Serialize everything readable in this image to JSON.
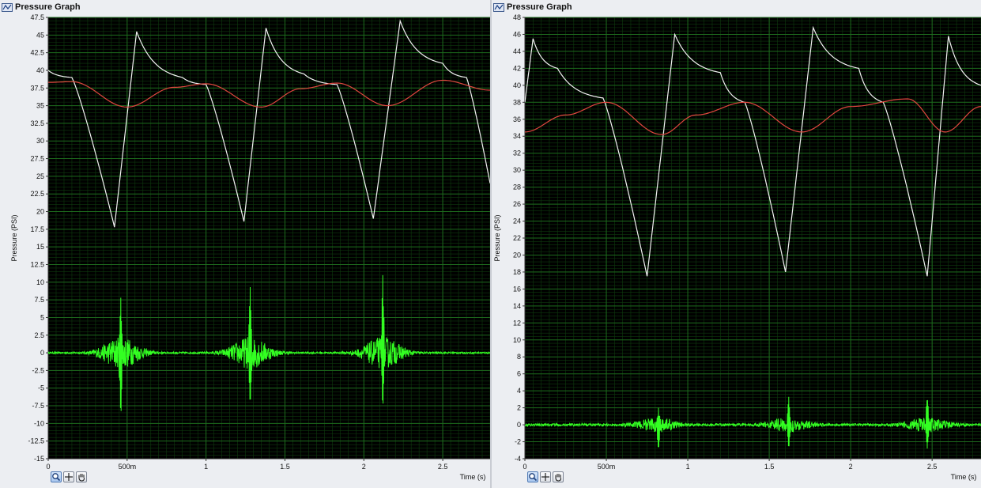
{
  "window": {
    "left_title": "Pressure Graph",
    "right_title": "Pressure Graph",
    "icons": [
      "graph-icon",
      "zoom-icon",
      "crosshair-icon",
      "hand-pan-icon"
    ]
  },
  "colors": {
    "plot_bg": "#000000",
    "grid_major": "#1d6b1d",
    "grid_minor": "#0e3a0e",
    "white_trace": "#f2f2f2",
    "red_trace": "#e0463f",
    "green_trace": "#33ff22"
  },
  "chart_data": [
    {
      "type": "line",
      "title": "Pressure Graph",
      "xlabel": "Time (s)",
      "ylabel": "Pressure (PSI)",
      "xlim": [
        0,
        2.8
      ],
      "ylim": [
        -15,
        47.5
      ],
      "grid": true,
      "x_ticks": [
        0,
        0.5,
        1,
        1.5,
        2,
        2.5
      ],
      "x_tick_labels": [
        "0",
        "500m",
        "1",
        "1.5",
        "2",
        "2.5"
      ],
      "y_ticks": [
        -15,
        -12.5,
        -10,
        -7.5,
        -5,
        -2.5,
        0,
        2.5,
        5,
        7.5,
        10,
        12.5,
        15,
        17.5,
        20,
        22.5,
        25,
        27.5,
        30,
        32.5,
        35,
        37.5,
        40,
        42.5,
        45,
        47.5
      ],
      "y_tick_labels": [
        "-15",
        "-12.5",
        "-10",
        "-7.5",
        "-5",
        "-2.5",
        "0",
        "2.5",
        "5",
        "7.5",
        "10",
        "12.5",
        "15",
        "17.5",
        "20",
        "22.5",
        "25",
        "27.5",
        "30",
        "32.5",
        "35",
        "37.5",
        "40",
        "42.5",
        "45",
        "47.5"
      ],
      "series": [
        {
          "color": "#f2f2f2",
          "x": [
            0,
            0.15,
            0.42,
            0.56,
            0.85,
            1.0,
            1.24,
            1.38,
            1.62,
            1.83,
            2.06,
            2.23,
            2.5,
            2.65,
            2.8
          ],
          "y": [
            40,
            39,
            17.8,
            45.5,
            39,
            38,
            18.6,
            46,
            39.5,
            38,
            19,
            47,
            41,
            39,
            24
          ]
        },
        {
          "color": "#e0463f",
          "x": [
            0,
            0.15,
            0.5,
            0.8,
            1.0,
            1.35,
            1.6,
            1.83,
            2.15,
            2.5,
            2.8
          ],
          "y": [
            38.3,
            38.4,
            34.8,
            37.6,
            38.1,
            34.8,
            37.4,
            38.2,
            35,
            38.6,
            37.2
          ],
          "note": ""
        },
        {
          "color": "#33ff22",
          "bursts": [
            {
              "center": 0.46,
              "peak_pos": 7.8,
              "peak_neg": -9.7
            },
            {
              "center": 1.28,
              "peak_pos": 9.3,
              "peak_neg": -8.3
            },
            {
              "center": 2.12,
              "peak_pos": 11,
              "peak_neg": -8.2
            }
          ]
        }
      ]
    },
    {
      "type": "line",
      "title": "Pressure Graph",
      "xlabel": "Time (s)",
      "ylabel": "Pressure (PSI)",
      "xlim": [
        0,
        2.8
      ],
      "ylim": [
        -4,
        48
      ],
      "grid": true,
      "x_ticks": [
        0,
        0.5,
        1,
        1.5,
        2,
        2.5
      ],
      "x_tick_labels": [
        "0",
        "500m",
        "1",
        "1.5",
        "2",
        "2.5"
      ],
      "y_ticks": [
        -4,
        -2,
        0,
        2,
        4,
        6,
        8,
        10,
        12,
        14,
        16,
        18,
        20,
        22,
        24,
        26,
        28,
        30,
        32,
        34,
        36,
        38,
        40,
        42,
        44,
        46,
        48
      ],
      "y_tick_labels": [
        "-4",
        "-2",
        "0",
        "2",
        "4",
        "6",
        "8",
        "10",
        "12",
        "14",
        "16",
        "18",
        "20",
        "22",
        "24",
        "26",
        "28",
        "30",
        "32",
        "34",
        "36",
        "38",
        "40",
        "42",
        "44",
        "46",
        "48"
      ],
      "series": [
        {
          "color": "#f2f2f2",
          "x": [
            0,
            0.05,
            0.2,
            0.48,
            0.75,
            0.92,
            1.2,
            1.35,
            1.6,
            1.77,
            2.05,
            2.2,
            2.47,
            2.6,
            2.8
          ],
          "y": [
            38,
            45.5,
            42,
            38.5,
            17.5,
            46,
            41.5,
            38,
            18,
            46.8,
            42,
            38,
            17.5,
            45.8,
            40
          ]
        },
        {
          "color": "#e0463f",
          "x": [
            0,
            0.25,
            0.5,
            0.84,
            1.05,
            1.35,
            1.7,
            2.0,
            2.35,
            2.58,
            2.8
          ],
          "y": [
            34.5,
            36.5,
            38,
            34.2,
            36.5,
            38,
            34.5,
            37.5,
            38.4,
            34.5,
            37.5
          ]
        },
        {
          "color": "#33ff22",
          "bursts": [
            {
              "center": 0.82,
              "peak_pos": 2,
              "peak_neg": -3
            },
            {
              "center": 1.62,
              "peak_pos": 3.3,
              "peak_neg": -3.2
            },
            {
              "center": 2.47,
              "peak_pos": 3.6,
              "peak_neg": -2.8
            }
          ]
        }
      ]
    }
  ]
}
